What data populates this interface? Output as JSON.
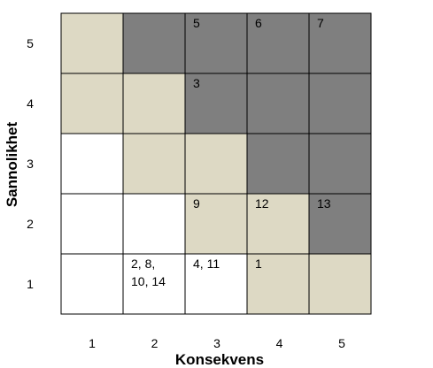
{
  "chart_data": {
    "type": "heatmap",
    "xlabel": "Konsekvens",
    "ylabel": "Sannolikhet",
    "x_ticks": [
      "1",
      "2",
      "3",
      "4",
      "5"
    ],
    "y_ticks": [
      "1",
      "2",
      "3",
      "4",
      "5"
    ],
    "colors": {
      "white": "#ffffff",
      "beige": "#ddd9c4",
      "gray": "#7f7f7f",
      "border": "#000000"
    },
    "cells": [
      {
        "x": 1,
        "y": 5,
        "level": "beige",
        "label": ""
      },
      {
        "x": 2,
        "y": 5,
        "level": "gray",
        "label": ""
      },
      {
        "x": 3,
        "y": 5,
        "level": "gray",
        "label": "5"
      },
      {
        "x": 4,
        "y": 5,
        "level": "gray",
        "label": "6"
      },
      {
        "x": 5,
        "y": 5,
        "level": "gray",
        "label": "7"
      },
      {
        "x": 1,
        "y": 4,
        "level": "beige",
        "label": ""
      },
      {
        "x": 2,
        "y": 4,
        "level": "beige",
        "label": ""
      },
      {
        "x": 3,
        "y": 4,
        "level": "gray",
        "label": "3"
      },
      {
        "x": 4,
        "y": 4,
        "level": "gray",
        "label": ""
      },
      {
        "x": 5,
        "y": 4,
        "level": "gray",
        "label": ""
      },
      {
        "x": 1,
        "y": 3,
        "level": "white",
        "label": ""
      },
      {
        "x": 2,
        "y": 3,
        "level": "beige",
        "label": ""
      },
      {
        "x": 3,
        "y": 3,
        "level": "beige",
        "label": ""
      },
      {
        "x": 4,
        "y": 3,
        "level": "gray",
        "label": ""
      },
      {
        "x": 5,
        "y": 3,
        "level": "gray",
        "label": ""
      },
      {
        "x": 1,
        "y": 2,
        "level": "white",
        "label": ""
      },
      {
        "x": 2,
        "y": 2,
        "level": "white",
        "label": ""
      },
      {
        "x": 3,
        "y": 2,
        "level": "beige",
        "label": "9"
      },
      {
        "x": 4,
        "y": 2,
        "level": "beige",
        "label": "12"
      },
      {
        "x": 5,
        "y": 2,
        "level": "gray",
        "label": "13"
      },
      {
        "x": 1,
        "y": 1,
        "level": "white",
        "label": ""
      },
      {
        "x": 2,
        "y": 1,
        "level": "white",
        "label": "2, 8,\n10, 14"
      },
      {
        "x": 3,
        "y": 1,
        "level": "white",
        "label": "4, 11"
      },
      {
        "x": 4,
        "y": 1,
        "level": "beige",
        "label": "1"
      },
      {
        "x": 5,
        "y": 1,
        "level": "beige",
        "label": ""
      }
    ]
  }
}
